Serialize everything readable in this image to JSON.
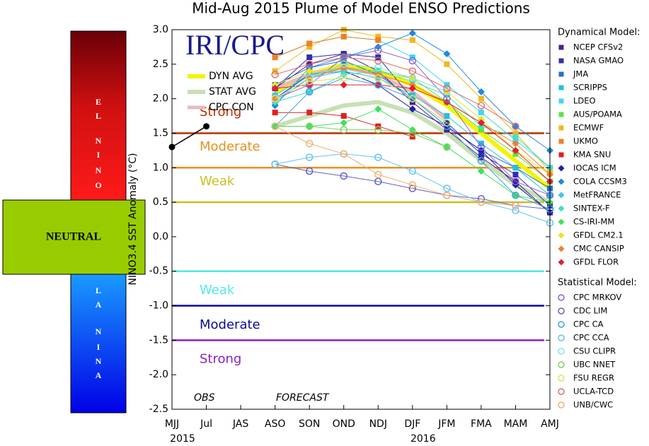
{
  "chart_data": {
    "type": "line",
    "title": "Mid-Aug 2015 Plume of Model ENSO Predictions",
    "y_label": "NINO3.4 SST Anomaly (°C)",
    "logo": "IRI/CPC",
    "annotations": [
      "OBS",
      "FORECAST"
    ],
    "categories": [
      "MJJ",
      "Jul",
      "JAS",
      "ASO",
      "SON",
      "OND",
      "NDJ",
      "DJF",
      "JFM",
      "FMA",
      "MAM",
      "AMJ"
    ],
    "year_labels": [
      "2015",
      null,
      null,
      null,
      null,
      null,
      null,
      "2016",
      null,
      null,
      null,
      null
    ],
    "ylim": [
      -2.5,
      3.0
    ],
    "yticks": [
      {
        "value": 3.0,
        "label": "3.0"
      },
      {
        "value": 2.5,
        "label": "2.5"
      },
      {
        "value": 2.0,
        "label": "2.0"
      },
      {
        "value": 1.5,
        "label": "1.5"
      },
      {
        "value": 1.0,
        "label": "1.0"
      },
      {
        "value": 0.5,
        "label": "0.5"
      },
      {
        "value": 0.0,
        "label": "0.0"
      },
      {
        "value": -0.5,
        "label": "-0.5"
      },
      {
        "value": -1.0,
        "label": "-1.0"
      },
      {
        "value": -1.5,
        "label": "-1.5"
      },
      {
        "value": -2.0,
        "label": "-2.0"
      },
      {
        "value": -2.5,
        "label": "-2.5"
      }
    ],
    "thresholds": [
      {
        "value": 1.5,
        "label": "Strong",
        "color": "#b83000"
      },
      {
        "value": 1.0,
        "label": "Moderate",
        "color": "#e8901c"
      },
      {
        "value": 0.5,
        "label": "Weak",
        "color": "#c8c020"
      },
      {
        "value": -0.5,
        "label": "Weak",
        "color": "#50e8e8"
      },
      {
        "value": -1.0,
        "label": "Moderate",
        "color": "#0a0a96"
      },
      {
        "value": -1.5,
        "label": "Strong",
        "color": "#8a20c8"
      }
    ],
    "side_panel": {
      "el_nino": [
        "E",
        "L",
        "N",
        "I",
        "N",
        "O"
      ],
      "neutral": "NEUTRAL",
      "la_nina": [
        "L",
        "A",
        "N",
        "I",
        "N",
        "A"
      ]
    },
    "legend_groups": [
      "Dynamical Model:",
      "Statistical Model:"
    ],
    "observed": {
      "color": "#000000",
      "values": [
        1.3,
        1.6,
        null,
        null,
        null,
        null,
        null,
        null,
        null,
        null,
        null,
        null
      ]
    },
    "series": [
      {
        "name": "DYN AVG",
        "color": "#f4f400",
        "marker": "none",
        "width": 6,
        "values": [
          null,
          null,
          null,
          2.1,
          2.35,
          2.5,
          2.4,
          2.2,
          1.9,
          1.5,
          1.1,
          0.7
        ]
      },
      {
        "name": "STAT AVG",
        "color": "#c8e0b4",
        "marker": "none",
        "width": 6,
        "values": [
          null,
          null,
          null,
          1.6,
          1.75,
          1.9,
          1.95,
          1.8,
          1.5,
          1.1,
          0.75,
          0.5
        ]
      },
      {
        "name": "CPC CON",
        "color": "#e8baba",
        "marker": "none",
        "width": 5,
        "values": [
          null,
          null,
          null,
          2.15,
          2.35,
          2.45,
          2.35,
          2.1,
          1.7,
          null,
          null,
          null
        ]
      },
      {
        "name": "NCEP CFSv2",
        "group": 0,
        "marker": "square",
        "color": "#4b1d8f",
        "values": [
          null,
          null,
          null,
          2.15,
          2.5,
          2.65,
          2.4,
          1.95,
          1.55,
          1.15,
          0.8,
          0.35
        ]
      },
      {
        "name": "NASA GMAO",
        "group": 0,
        "marker": "square",
        "color": "#3030a8",
        "values": [
          null,
          null,
          null,
          2.15,
          2.6,
          2.65,
          2.6,
          2.0,
          1.65,
          1.2,
          0.9,
          0.45
        ]
      },
      {
        "name": "JMA",
        "group": 0,
        "marker": "square",
        "color": "#2070d0",
        "values": [
          null,
          null,
          null,
          2.2,
          2.45,
          2.55,
          2.35,
          2.0,
          1.6,
          1.25,
          1.0,
          0.7
        ]
      },
      {
        "name": "SCRIPPS",
        "group": 0,
        "marker": "square",
        "color": "#20c0e0",
        "values": [
          null,
          null,
          null,
          1.95,
          2.3,
          2.4,
          2.3,
          2.05,
          1.75,
          1.35,
          1.0,
          0.6
        ]
      },
      {
        "name": "LDEO",
        "group": 0,
        "marker": "square",
        "color": "#40d8f0",
        "values": [
          null,
          null,
          null,
          2.6,
          2.8,
          2.9,
          2.85,
          2.6,
          2.2,
          1.8,
          1.4,
          1.0
        ]
      },
      {
        "name": "AUS/POAMA",
        "group": 0,
        "marker": "square",
        "color": "#60e040",
        "values": [
          null,
          null,
          null,
          2.05,
          2.35,
          2.45,
          2.4,
          2.3,
          1.95,
          1.55,
          1.2,
          0.8
        ]
      },
      {
        "name": "ECMWF",
        "group": 0,
        "marker": "square",
        "color": "#f0b820",
        "values": [
          null,
          null,
          null,
          2.4,
          2.75,
          3.0,
          2.9,
          2.85,
          2.5,
          2.0,
          1.5,
          0.95
        ]
      },
      {
        "name": "UKMO",
        "group": 0,
        "marker": "square",
        "color": "#f08020",
        "values": [
          null,
          null,
          null,
          2.6,
          2.8,
          2.9,
          2.85,
          null,
          null,
          null,
          null,
          null
        ]
      },
      {
        "name": "KMA SNU",
        "group": 0,
        "marker": "square",
        "color": "#e02020",
        "values": [
          null,
          null,
          null,
          1.8,
          1.8,
          1.75,
          1.6,
          1.45,
          null,
          null,
          null,
          null
        ]
      },
      {
        "name": "IOCAS ICM",
        "group": 0,
        "marker": "diamond",
        "color": "#2020a8",
        "values": [
          null,
          null,
          null,
          2.0,
          2.35,
          2.4,
          2.2,
          1.85,
          1.6,
          1.25,
          0.75,
          0.35
        ]
      },
      {
        "name": "COLA CCSM3",
        "group": 0,
        "marker": "diamond",
        "color": "#2088e0",
        "values": [
          null,
          null,
          null,
          1.9,
          2.45,
          2.6,
          2.75,
          2.95,
          2.65,
          2.1,
          1.6,
          1.25
        ]
      },
      {
        "name": "MetFRANCE",
        "group": 0,
        "marker": "diamond",
        "color": "#40c4f4",
        "values": [
          null,
          null,
          null,
          2.05,
          2.35,
          2.4,
          2.3,
          null,
          null,
          null,
          null,
          null
        ]
      },
      {
        "name": "SINTEX-F",
        "group": 0,
        "marker": "diamond",
        "color": "#40e0c8",
        "values": [
          null,
          null,
          null,
          1.95,
          2.1,
          2.35,
          2.4,
          2.25,
          2.05,
          1.6,
          1.45,
          1.0
        ]
      },
      {
        "name": "CS-IRI-MM",
        "group": 0,
        "marker": "diamond",
        "color": "#40e060",
        "values": [
          null,
          null,
          null,
          1.6,
          1.6,
          1.65,
          1.85,
          1.55,
          1.3,
          0.95,
          0.6,
          0.5
        ]
      },
      {
        "name": "GFDL CM2.1",
        "group": 0,
        "marker": "diamond",
        "color": "#f0e020",
        "values": [
          null,
          null,
          null,
          2.2,
          2.4,
          2.45,
          2.35,
          2.3,
          2.1,
          1.7,
          1.25,
          0.9
        ]
      },
      {
        "name": "CMC CANSIP",
        "group": 0,
        "marker": "diamond",
        "color": "#f08030",
        "values": [
          null,
          null,
          null,
          2.0,
          2.3,
          2.45,
          2.35,
          2.2,
          1.95,
          1.65,
          1.35,
          0.9
        ]
      },
      {
        "name": "GFDL FLOR",
        "group": 0,
        "marker": "diamond",
        "color": "#e02030",
        "values": [
          null,
          null,
          null,
          2.15,
          2.2,
          2.2,
          2.2,
          2.15,
          1.95,
          1.65,
          1.25,
          0.8
        ]
      },
      {
        "name": "CPC MRKOV",
        "group": 1,
        "marker": "circle",
        "color": "#9060d0",
        "values": [
          null,
          null,
          null,
          2.0,
          2.2,
          2.6,
          2.7,
          2.55,
          2.0,
          1.3,
          0.8,
          0.6
        ]
      },
      {
        "name": "CDC LIM",
        "group": 1,
        "marker": "circle",
        "color": "#6060c8",
        "values": [
          null,
          null,
          null,
          1.05,
          0.95,
          0.88,
          0.8,
          0.7,
          0.6,
          0.55,
          0.45,
          0.4
        ]
      },
      {
        "name": "CPC CA",
        "group": 1,
        "marker": "circle",
        "color": "#40a0e0",
        "values": [
          null,
          null,
          null,
          1.6,
          2.1,
          2.3,
          2.2,
          2.0,
          1.6,
          1.1,
          0.6,
          0.4
        ]
      },
      {
        "name": "CPC CCA",
        "group": 1,
        "marker": "circle",
        "color": "#60c4f0",
        "values": [
          null,
          null,
          null,
          1.05,
          1.15,
          1.2,
          1.15,
          0.95,
          0.7,
          0.5,
          0.38,
          0.2
        ]
      },
      {
        "name": "CSU CLIPR",
        "group": 1,
        "marker": "circle",
        "color": "#80e4f0",
        "values": [
          null,
          null,
          null,
          2.0,
          2.3,
          2.5,
          2.45,
          2.3,
          2.1,
          null,
          null,
          null
        ]
      },
      {
        "name": "UBC NNET",
        "group": 1,
        "marker": "circle",
        "color": "#80d060",
        "values": [
          null,
          null,
          null,
          1.6,
          1.6,
          1.55,
          1.55,
          1.5,
          1.3,
          null,
          null,
          null
        ]
      },
      {
        "name": "FSU REGR",
        "group": 1,
        "marker": "circle",
        "color": "#e0e060",
        "values": [
          null,
          null,
          null,
          2.0,
          2.25,
          2.3,
          2.3,
          2.0,
          1.65,
          null,
          null,
          null
        ]
      },
      {
        "name": "UCLA-TCD",
        "group": 1,
        "marker": "circle",
        "color": "#e07070",
        "values": [
          null,
          null,
          null,
          2.35,
          2.5,
          2.6,
          2.55,
          2.4,
          2.15,
          1.9,
          1.6,
          null
        ]
      },
      {
        "name": "UNB/CWC",
        "group": 1,
        "marker": "circle",
        "color": "#f0b070",
        "values": [
          null,
          null,
          null,
          1.6,
          1.35,
          1.2,
          0.9,
          0.75,
          0.6,
          0.5,
          0.45,
          null
        ]
      }
    ]
  }
}
